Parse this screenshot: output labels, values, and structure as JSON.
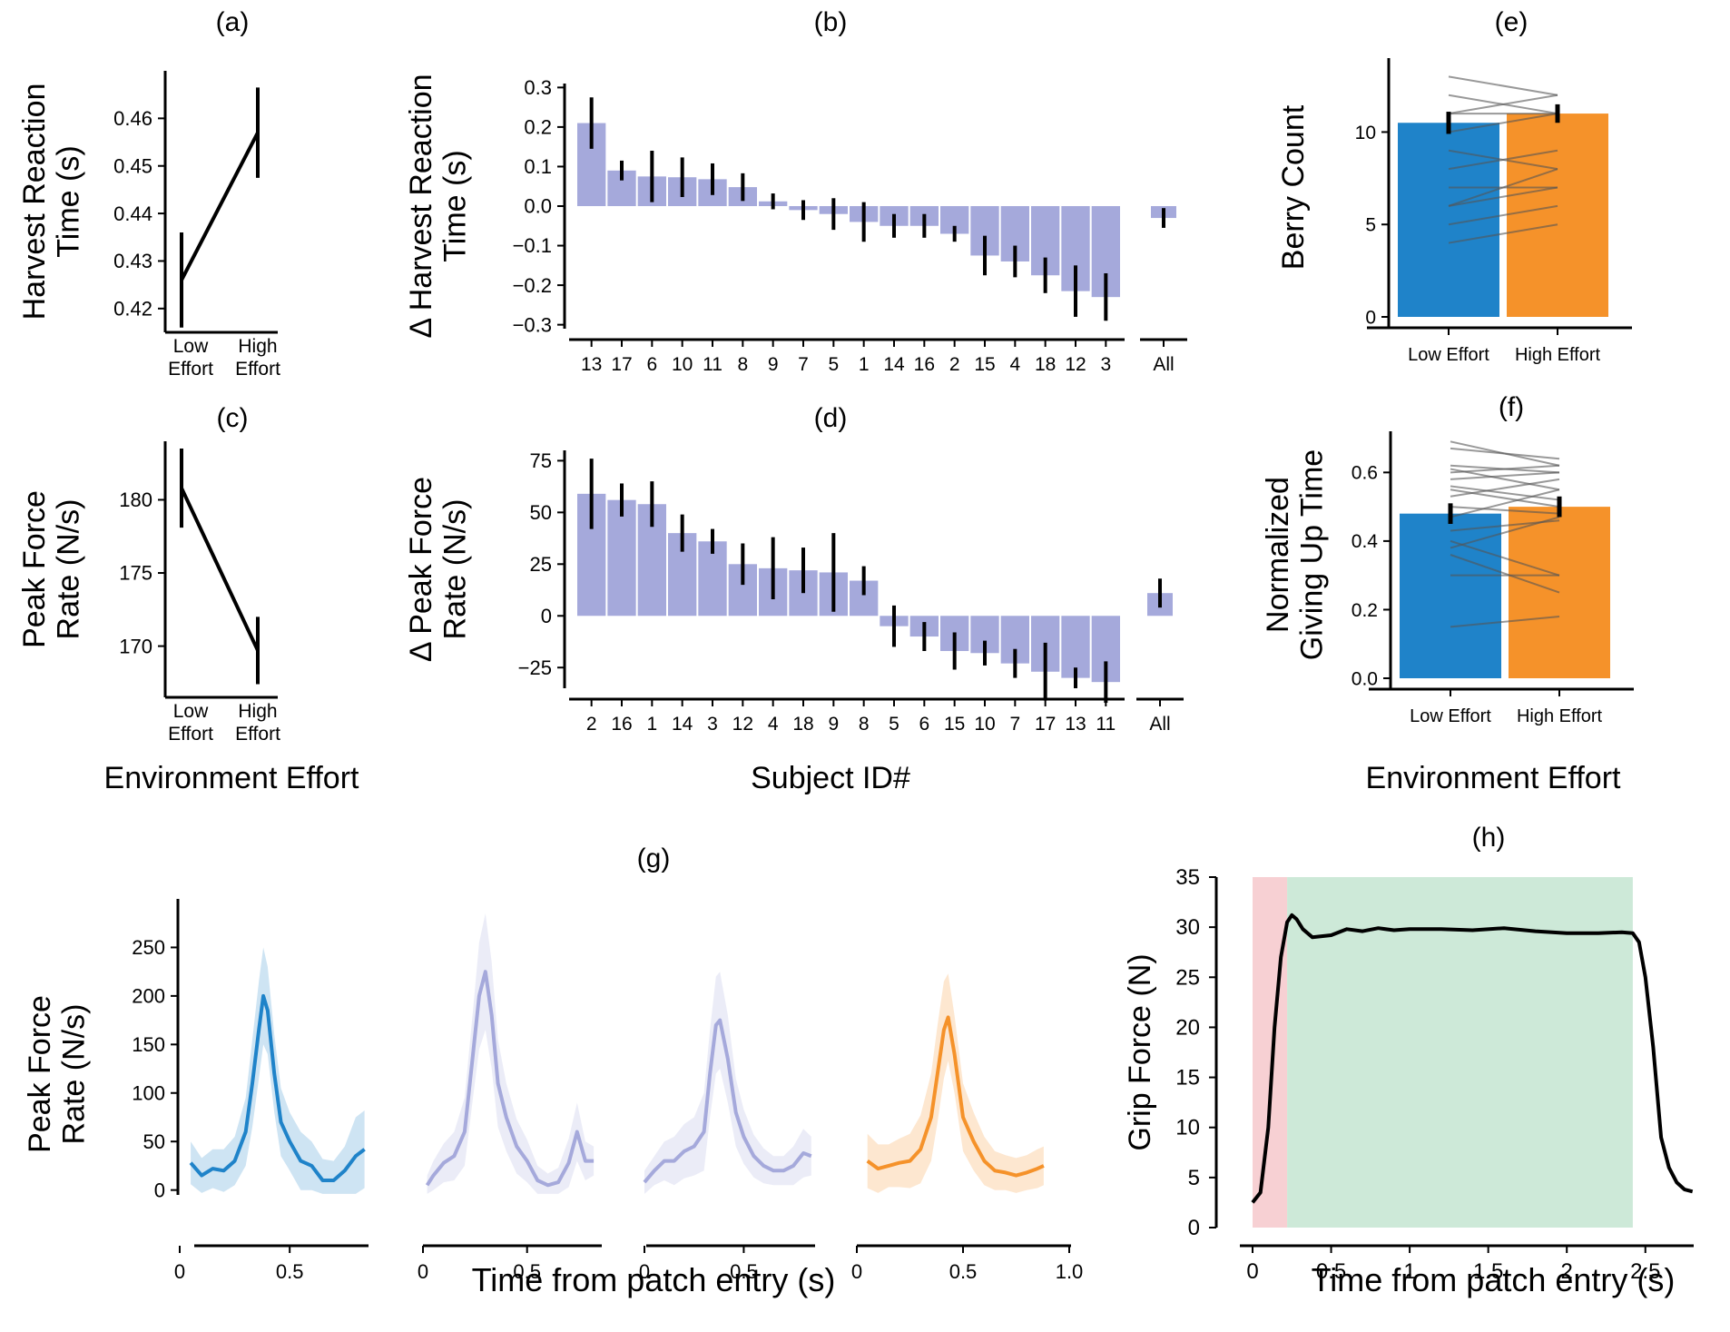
{
  "panel_labels": {
    "a": "(a)",
    "b": "(b)",
    "c": "(c)",
    "d": "(d)",
    "e": "(e)",
    "f": "(f)",
    "g": "(g)",
    "h": "(h)"
  },
  "shared_labels": {
    "env_effort_left": "Environment Effort",
    "subject_id": "Subject ID#",
    "env_effort_right": "Environment Effort",
    "time_g": "Time from patch entry (s)",
    "time_h": "Time from patch entry (s)"
  },
  "colors": {
    "low_effort": "#1f83c9",
    "high_effort": "#f5922a",
    "subject_bar": "#a5a9db",
    "subject_line": "#a5a9db",
    "red_region": "#f7d0d3",
    "green_region": "#cde9d8",
    "black": "#000000"
  },
  "chart_data": [
    {
      "id": "a",
      "type": "line",
      "ylabel": [
        "Harvest Reaction",
        "Time (s)"
      ],
      "categories": [
        [
          "Low",
          "Effort"
        ],
        [
          "High",
          "Effort"
        ]
      ],
      "values": [
        0.426,
        0.457
      ],
      "errors": [
        0.01,
        0.0095
      ],
      "ylim": [
        0.415,
        0.47
      ],
      "yticks": [
        0.42,
        0.43,
        0.44,
        0.45,
        0.46
      ],
      "ytick_labels": [
        "0.42",
        "0.43",
        "0.44",
        "0.45",
        "0.46"
      ]
    },
    {
      "id": "b",
      "type": "bar",
      "ylabel": [
        "Δ Harvest Reaction",
        "Time (s)"
      ],
      "categories": [
        "13",
        "17",
        "6",
        "10",
        "11",
        "8",
        "9",
        "7",
        "5",
        "1",
        "14",
        "16",
        "2",
        "15",
        "4",
        "18",
        "12",
        "3"
      ],
      "values": [
        0.21,
        0.09,
        0.075,
        0.073,
        0.068,
        0.048,
        0.012,
        -0.01,
        -0.02,
        -0.04,
        -0.05,
        -0.05,
        -0.07,
        -0.125,
        -0.14,
        -0.175,
        -0.215,
        -0.23
      ],
      "errors": [
        0.065,
        0.025,
        0.065,
        0.05,
        0.04,
        0.035,
        0.02,
        0.025,
        0.04,
        0.05,
        0.03,
        0.03,
        0.02,
        0.05,
        0.04,
        0.045,
        0.065,
        0.06
      ],
      "all": {
        "label": "All",
        "value": -0.03,
        "error": 0.025
      },
      "ylim": [
        -0.31,
        0.31
      ],
      "yticks": [
        -0.3,
        -0.2,
        -0.1,
        0.0,
        0.1,
        0.2,
        0.3
      ],
      "ytick_labels": [
        "−0.3",
        "−0.2",
        "−0.1",
        "0.0",
        "0.1",
        "0.2",
        "0.3"
      ]
    },
    {
      "id": "c",
      "type": "line",
      "ylabel": [
        "Peak Force",
        "Rate (N/s)"
      ],
      "categories": [
        [
          "Low",
          "Effort"
        ],
        [
          "High",
          "Effort"
        ]
      ],
      "values": [
        180.8,
        169.7
      ],
      "errors": [
        2.7,
        2.3
      ],
      "ylim": [
        166.5,
        184.0
      ],
      "yticks": [
        170,
        175,
        180
      ],
      "ytick_labels": [
        "170",
        "175",
        "180"
      ]
    },
    {
      "id": "d",
      "type": "bar",
      "ylabel": [
        "Δ Peak Force",
        "Rate (N/s)"
      ],
      "categories": [
        "2",
        "16",
        "1",
        "14",
        "3",
        "12",
        "4",
        "18",
        "9",
        "8",
        "5",
        "6",
        "15",
        "10",
        "7",
        "17",
        "13",
        "11"
      ],
      "values": [
        59,
        56,
        54,
        40,
        36,
        25,
        23,
        22,
        21,
        17,
        -5,
        -10,
        -17,
        -18,
        -23,
        -27,
        -30,
        -32
      ],
      "errors": [
        17,
        8,
        11,
        9,
        6,
        10,
        15,
        11,
        19,
        7,
        10,
        7,
        9,
        6,
        7,
        14,
        5,
        10
      ],
      "all": {
        "label": "All",
        "value": 11,
        "error": 7
      },
      "ylim": [
        -35,
        80
      ],
      "yticks": [
        -25,
        0,
        25,
        50,
        75
      ],
      "ytick_labels": [
        "−25",
        "0",
        "25",
        "50",
        "75"
      ]
    },
    {
      "id": "e",
      "type": "bar",
      "ylabel": [
        "Berry Count"
      ],
      "categories": [
        "Low Effort",
        "High Effort"
      ],
      "values": [
        10.5,
        11.0
      ],
      "errors": [
        0.6,
        0.5
      ],
      "paired": [
        [
          13,
          12
        ],
        [
          12,
          11
        ],
        [
          11,
          12
        ],
        [
          11,
          11
        ],
        [
          10,
          11
        ],
        [
          9,
          8
        ],
        [
          8,
          9
        ],
        [
          7,
          7
        ],
        [
          6,
          7
        ],
        [
          6,
          8
        ],
        [
          5,
          6
        ],
        [
          4,
          5
        ]
      ],
      "ylim": [
        0,
        14
      ],
      "yticks": [
        0,
        5,
        10
      ],
      "ytick_labels": [
        "0",
        "5",
        "10"
      ]
    },
    {
      "id": "f",
      "type": "bar",
      "ylabel": [
        "Normalized",
        "Giving Up Time"
      ],
      "categories": [
        "Low Effort",
        "High Effort"
      ],
      "values": [
        0.48,
        0.5
      ],
      "errors": [
        0.03,
        0.03
      ],
      "paired": [
        [
          0.69,
          0.62
        ],
        [
          0.67,
          0.64
        ],
        [
          0.62,
          0.6
        ],
        [
          0.61,
          0.55
        ],
        [
          0.6,
          0.62
        ],
        [
          0.58,
          0.6
        ],
        [
          0.56,
          0.52
        ],
        [
          0.55,
          0.5
        ],
        [
          0.53,
          0.58
        ],
        [
          0.5,
          0.48
        ],
        [
          0.47,
          0.55
        ],
        [
          0.43,
          0.46
        ],
        [
          0.4,
          0.3
        ],
        [
          0.38,
          0.47
        ],
        [
          0.36,
          0.25
        ],
        [
          0.3,
          0.3
        ],
        [
          0.15,
          0.18
        ]
      ],
      "ylim": [
        0,
        0.72
      ],
      "yticks": [
        0.0,
        0.2,
        0.4,
        0.6
      ],
      "ytick_labels": [
        "0.0",
        "0.2",
        "0.4",
        "0.6"
      ]
    },
    {
      "id": "g",
      "type": "area",
      "ylabel": [
        "Peak Force",
        "Rate (N/s)"
      ],
      "ylim": [
        -5,
        300
      ],
      "yticks": [
        0,
        50,
        100,
        150,
        200,
        250
      ],
      "ytick_labels": [
        "0",
        "50",
        "100",
        "150",
        "200",
        "250"
      ],
      "series": [
        {
          "color": "#1f83c9",
          "x": [
            0.05,
            0.1,
            0.15,
            0.2,
            0.25,
            0.3,
            0.33,
            0.36,
            0.38,
            0.4,
            0.43,
            0.46,
            0.5,
            0.55,
            0.6,
            0.65,
            0.7,
            0.75,
            0.8,
            0.84
          ],
          "y": [
            28,
            15,
            22,
            20,
            30,
            60,
            110,
            165,
            200,
            185,
            120,
            70,
            50,
            30,
            25,
            10,
            10,
            20,
            35,
            42
          ],
          "band": [
            22,
            18,
            20,
            22,
            25,
            35,
            45,
            50,
            50,
            45,
            40,
            35,
            30,
            30,
            25,
            22,
            20,
            25,
            40,
            40
          ],
          "xticks": [
            0,
            0.5
          ],
          "xtick_labels": [
            "0",
            "0.5"
          ],
          "xdomain": [
            0,
            0.85
          ]
        },
        {
          "color": "#a5a9db",
          "x": [
            0.02,
            0.05,
            0.1,
            0.15,
            0.2,
            0.24,
            0.27,
            0.3,
            0.33,
            0.36,
            0.4,
            0.45,
            0.5,
            0.55,
            0.6,
            0.65,
            0.7,
            0.74,
            0.78,
            0.82
          ],
          "y": [
            5,
            15,
            28,
            35,
            60,
            140,
            200,
            225,
            180,
            110,
            75,
            45,
            30,
            10,
            5,
            8,
            28,
            60,
            30,
            30
          ],
          "band": [
            10,
            15,
            20,
            25,
            35,
            45,
            55,
            60,
            55,
            45,
            35,
            28,
            22,
            15,
            12,
            15,
            25,
            30,
            20,
            15
          ],
          "xticks": [
            0,
            0.5
          ],
          "xtick_labels": [
            "0",
            "0.5"
          ],
          "xdomain": [
            0,
            0.85
          ]
        },
        {
          "color": "#a5a9db",
          "x": [
            0.0,
            0.05,
            0.1,
            0.15,
            0.2,
            0.25,
            0.3,
            0.33,
            0.36,
            0.38,
            0.42,
            0.46,
            0.5,
            0.55,
            0.6,
            0.65,
            0.7,
            0.75,
            0.8,
            0.84
          ],
          "y": [
            8,
            20,
            30,
            30,
            40,
            45,
            60,
            120,
            170,
            175,
            135,
            80,
            55,
            35,
            25,
            20,
            20,
            25,
            38,
            35
          ],
          "band": [
            12,
            15,
            20,
            25,
            28,
            30,
            40,
            45,
            50,
            50,
            45,
            35,
            28,
            22,
            18,
            15,
            15,
            20,
            25,
            20
          ],
          "xticks": [
            0,
            0.5
          ],
          "xtick_labels": [
            "0",
            "0.5"
          ],
          "xdomain": [
            0,
            0.85
          ]
        },
        {
          "color": "#f5922a",
          "x": [
            0.05,
            0.1,
            0.15,
            0.2,
            0.25,
            0.3,
            0.35,
            0.38,
            0.41,
            0.43,
            0.46,
            0.5,
            0.55,
            0.6,
            0.65,
            0.7,
            0.75,
            0.8,
            0.85,
            0.88
          ],
          "y": [
            30,
            22,
            25,
            28,
            30,
            42,
            75,
            120,
            165,
            178,
            140,
            75,
            50,
            30,
            20,
            18,
            15,
            18,
            22,
            25
          ],
          "band": [
            28,
            25,
            22,
            25,
            28,
            35,
            45,
            50,
            50,
            45,
            40,
            35,
            30,
            25,
            20,
            18,
            18,
            18,
            20,
            20
          ],
          "xticks": [
            0,
            0.5,
            1.0
          ],
          "xtick_labels": [
            "0",
            "0.5",
            "1.0"
          ],
          "xdomain": [
            0,
            1.0
          ]
        }
      ]
    },
    {
      "id": "h",
      "type": "line",
      "ylabel": [
        "Grip Force  (N)"
      ],
      "xlim": [
        0,
        2.9
      ],
      "ylim": [
        0,
        35
      ],
      "xticks": [
        0,
        0.5,
        1,
        1.5,
        2,
        2.5
      ],
      "xtick_labels": [
        "0",
        "0.5",
        "1",
        "1.5",
        "2",
        "2.5"
      ],
      "yticks": [
        0,
        5,
        10,
        15,
        20,
        25,
        30,
        35
      ],
      "ytick_labels": [
        "0",
        "5",
        "10",
        "15",
        "20",
        "25",
        "30",
        "35"
      ],
      "regions": [
        {
          "x0": 0,
          "x1": 0.22,
          "color": "#f7d0d3"
        },
        {
          "x0": 0.22,
          "x1": 2.42,
          "color": "#cde9d8"
        }
      ],
      "x": [
        0.0,
        0.05,
        0.1,
        0.14,
        0.18,
        0.22,
        0.25,
        0.28,
        0.32,
        0.38,
        0.5,
        0.6,
        0.7,
        0.8,
        0.9,
        1.0,
        1.2,
        1.4,
        1.6,
        1.8,
        2.0,
        2.2,
        2.35,
        2.42,
        2.46,
        2.5,
        2.55,
        2.6,
        2.65,
        2.7,
        2.75,
        2.8
      ],
      "y": [
        2.5,
        3.5,
        10,
        20,
        27,
        30.5,
        31.2,
        30.8,
        29.8,
        29.0,
        29.2,
        29.8,
        29.6,
        29.9,
        29.7,
        29.8,
        29.8,
        29.7,
        29.9,
        29.6,
        29.4,
        29.4,
        29.5,
        29.4,
        28.5,
        25,
        18,
        9,
        6,
        4.5,
        3.8,
        3.6
      ]
    }
  ]
}
